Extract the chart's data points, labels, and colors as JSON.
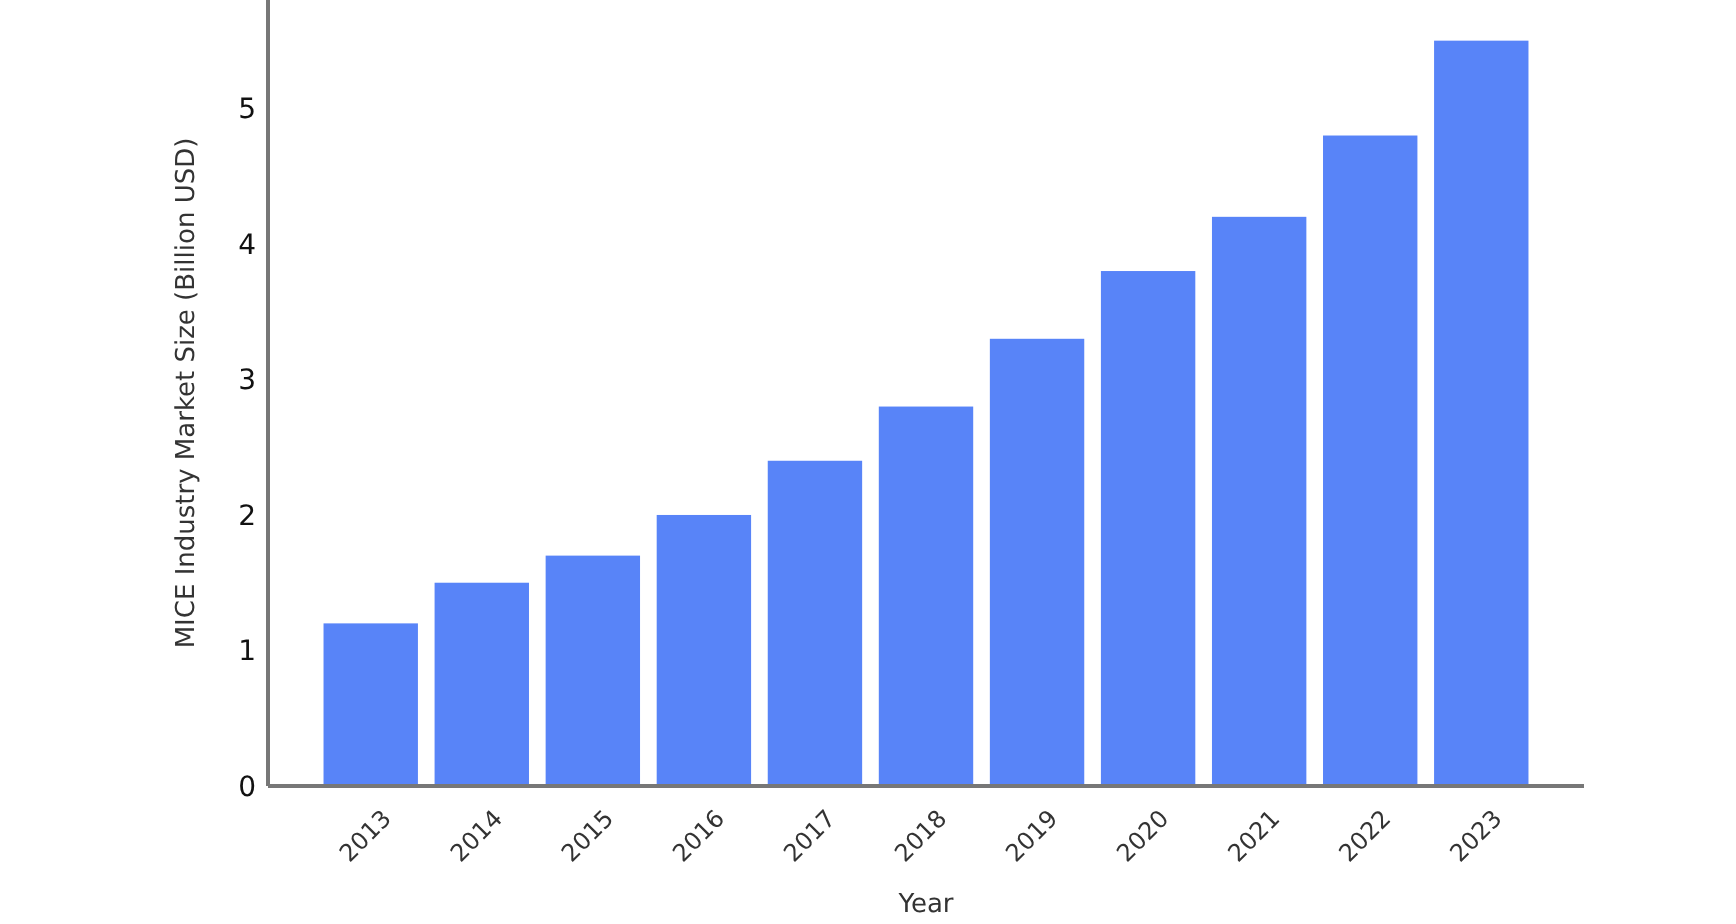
{
  "chart_data": {
    "type": "bar",
    "xlabel": "Year",
    "ylabel": "MICE Industry Market Size (Billion USD)",
    "categories": [
      "2013",
      "2014",
      "2015",
      "2016",
      "2017",
      "2018",
      "2019",
      "2020",
      "2021",
      "2022",
      "2023"
    ],
    "values": [
      1.2,
      1.5,
      1.7,
      2.0,
      2.4,
      2.8,
      3.3,
      3.8,
      4.2,
      4.8,
      5.5
    ],
    "color": "#5884f8",
    "ylim": [
      0,
      5.8
    ],
    "yticks": [
      0,
      1,
      2,
      3,
      4,
      5
    ],
    "grid": false
  }
}
